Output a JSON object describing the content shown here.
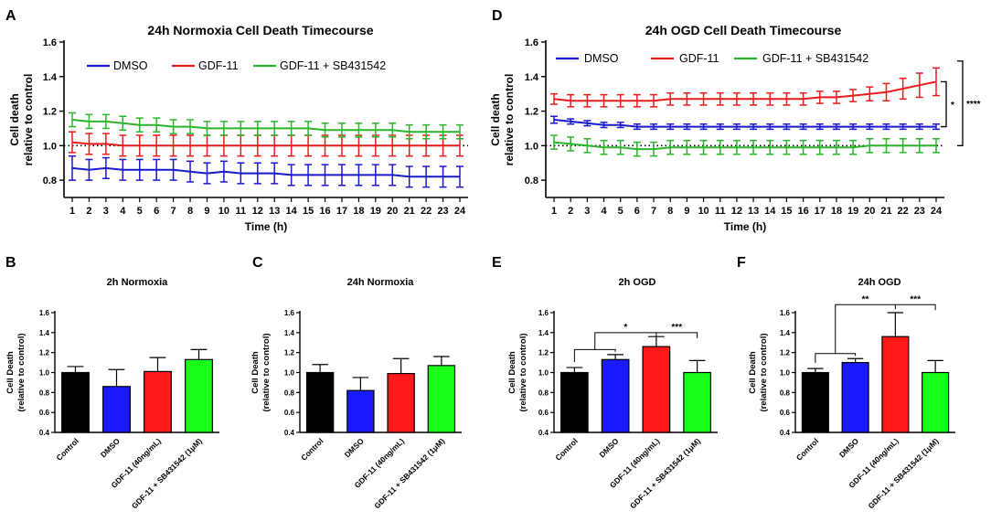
{
  "figure": {
    "chart_data": [
      {
        "panel": "A",
        "type": "line",
        "title": "24h Normoxia Cell Death Timecourse",
        "xlabel": "Time (h)",
        "ylabel": [
          "Cell death",
          "relative to control"
        ],
        "x": [
          1,
          2,
          3,
          4,
          5,
          6,
          7,
          8,
          9,
          10,
          11,
          12,
          13,
          14,
          15,
          16,
          17,
          18,
          19,
          20,
          21,
          22,
          23,
          24
        ],
        "ylim": [
          0.7,
          1.6
        ],
        "yticks": [
          "0.8",
          "1.0",
          "1.2",
          "1.4",
          "1.6"
        ],
        "reference_line": 1.0,
        "series": [
          {
            "name": "DMSO",
            "color": "#1a1acc",
            "values": [
              0.87,
              0.86,
              0.87,
              0.86,
              0.86,
              0.86,
              0.86,
              0.85,
              0.84,
              0.85,
              0.84,
              0.84,
              0.84,
              0.83,
              0.83,
              0.83,
              0.83,
              0.83,
              0.83,
              0.83,
              0.82,
              0.82,
              0.82,
              0.82
            ],
            "errors": [
              0.07,
              0.06,
              0.06,
              0.06,
              0.06,
              0.06,
              0.06,
              0.06,
              0.06,
              0.06,
              0.06,
              0.06,
              0.06,
              0.06,
              0.06,
              0.06,
              0.06,
              0.06,
              0.06,
              0.06,
              0.06,
              0.06,
              0.06,
              0.06
            ]
          },
          {
            "name": "GDF-11",
            "color": "#e81c1c",
            "values": [
              1.02,
              1.01,
              1.01,
              1.0,
              1.0,
              1.0,
              1.0,
              1.0,
              1.0,
              1.0,
              1.0,
              1.0,
              1.0,
              1.0,
              1.0,
              1.0,
              1.0,
              1.0,
              1.0,
              1.0,
              1.0,
              1.0,
              1.0,
              1.0
            ],
            "errors": [
              0.06,
              0.06,
              0.06,
              0.06,
              0.06,
              0.06,
              0.06,
              0.06,
              0.06,
              0.06,
              0.06,
              0.06,
              0.06,
              0.06,
              0.06,
              0.06,
              0.06,
              0.06,
              0.06,
              0.06,
              0.06,
              0.06,
              0.06,
              0.06
            ]
          },
          {
            "name": "GDF-11 + SB431542",
            "color": "#2ab52a",
            "values": [
              1.15,
              1.14,
              1.14,
              1.13,
              1.12,
              1.12,
              1.11,
              1.11,
              1.1,
              1.1,
              1.1,
              1.1,
              1.1,
              1.1,
              1.1,
              1.09,
              1.09,
              1.09,
              1.09,
              1.09,
              1.08,
              1.08,
              1.08,
              1.08
            ],
            "errors": [
              0.04,
              0.04,
              0.04,
              0.04,
              0.04,
              0.04,
              0.04,
              0.04,
              0.04,
              0.04,
              0.04,
              0.04,
              0.04,
              0.04,
              0.04,
              0.04,
              0.04,
              0.04,
              0.04,
              0.04,
              0.04,
              0.04,
              0.04,
              0.04
            ]
          }
        ]
      },
      {
        "panel": "D",
        "type": "line",
        "title": "24h OGD Cell Death Timecourse",
        "xlabel": "Time (h)",
        "ylabel": [
          "Cell death",
          "relative to control"
        ],
        "x": [
          1,
          2,
          3,
          4,
          5,
          6,
          7,
          8,
          9,
          10,
          11,
          12,
          13,
          14,
          15,
          16,
          17,
          18,
          19,
          20,
          21,
          22,
          23,
          24
        ],
        "ylim": [
          0.7,
          1.6
        ],
        "yticks": [
          "0.8",
          "1.0",
          "1.2",
          "1.4",
          "1.6"
        ],
        "reference_line": 1.0,
        "significance": [
          "*",
          "****"
        ],
        "series": [
          {
            "name": "DMSO",
            "color": "#1a1acc",
            "values": [
              1.15,
              1.14,
              1.13,
              1.12,
              1.12,
              1.11,
              1.11,
              1.11,
              1.11,
              1.11,
              1.11,
              1.11,
              1.11,
              1.11,
              1.11,
              1.11,
              1.11,
              1.11,
              1.11,
              1.11,
              1.11,
              1.11,
              1.11,
              1.11
            ],
            "errors": [
              0.02,
              0.015,
              0.015,
              0.015,
              0.015,
              0.015,
              0.015,
              0.015,
              0.015,
              0.015,
              0.015,
              0.015,
              0.015,
              0.015,
              0.015,
              0.015,
              0.015,
              0.015,
              0.015,
              0.015,
              0.015,
              0.015,
              0.015,
              0.015
            ]
          },
          {
            "name": "GDF-11",
            "color": "#e81c1c",
            "values": [
              1.27,
              1.26,
              1.26,
              1.26,
              1.26,
              1.26,
              1.26,
              1.27,
              1.27,
              1.27,
              1.27,
              1.27,
              1.27,
              1.27,
              1.27,
              1.27,
              1.28,
              1.28,
              1.29,
              1.3,
              1.31,
              1.33,
              1.35,
              1.37
            ],
            "errors": [
              0.03,
              0.035,
              0.035,
              0.035,
              0.035,
              0.035,
              0.035,
              0.035,
              0.035,
              0.035,
              0.035,
              0.035,
              0.035,
              0.035,
              0.035,
              0.035,
              0.035,
              0.035,
              0.035,
              0.04,
              0.05,
              0.06,
              0.07,
              0.08
            ]
          },
          {
            "name": "GDF-11 + SB431542",
            "color": "#2ab52a",
            "values": [
              1.02,
              1.01,
              1.0,
              0.99,
              0.99,
              0.98,
              0.98,
              0.99,
              0.99,
              0.99,
              0.99,
              0.99,
              0.99,
              0.99,
              0.99,
              0.99,
              0.99,
              0.99,
              0.99,
              1.0,
              1.0,
              1.0,
              1.0,
              1.0
            ],
            "errors": [
              0.04,
              0.04,
              0.04,
              0.04,
              0.04,
              0.04,
              0.04,
              0.04,
              0.04,
              0.04,
              0.04,
              0.04,
              0.04,
              0.04,
              0.04,
              0.04,
              0.04,
              0.04,
              0.04,
              0.04,
              0.04,
              0.04,
              0.04,
              0.04
            ]
          }
        ]
      },
      {
        "panel": "B",
        "type": "bar",
        "title": "2h Normoxia",
        "ylabel": [
          "Cell Death",
          "(relative to control)"
        ],
        "categories": [
          "Control",
          "DMSO",
          "GDF-11 (40ng/mL)",
          "GDF-11 + SB431542 (1μM)"
        ],
        "values": [
          1.0,
          0.86,
          1.01,
          1.13
        ],
        "errors": [
          0.06,
          0.17,
          0.14,
          0.1
        ],
        "colors": [
          "#000000",
          "#1a1aff",
          "#ff1a1a",
          "#1aff1a"
        ],
        "ylim": [
          0.4,
          1.6
        ],
        "yticks": [
          "0.4",
          "0.6",
          "0.8",
          "1.0",
          "1.2",
          "1.4",
          "1.6"
        ]
      },
      {
        "panel": "C",
        "type": "bar",
        "title": "24h Normoxia",
        "ylabel": [
          "Cell Death",
          "(relative to control)"
        ],
        "categories": [
          "Control",
          "DMSO",
          "GDF-11 (40ng/mL)",
          "GDF-11 + SB431542 (1μM)"
        ],
        "values": [
          1.0,
          0.82,
          0.99,
          1.07
        ],
        "errors": [
          0.08,
          0.13,
          0.15,
          0.09
        ],
        "colors": [
          "#000000",
          "#1a1aff",
          "#ff1a1a",
          "#1aff1a"
        ],
        "ylim": [
          0.4,
          1.6
        ],
        "yticks": [
          "0.4",
          "0.6",
          "0.8",
          "1.0",
          "1.2",
          "1.4",
          "1.6"
        ]
      },
      {
        "panel": "E",
        "type": "bar",
        "title": "2h OGD",
        "ylabel": [
          "Cell Death",
          "(relative to control)"
        ],
        "categories": [
          "Control",
          "DMSO",
          "GDF-11 (40ng/mL)",
          "GDF-11 + SB431542 (1μM)"
        ],
        "values": [
          1.0,
          1.13,
          1.26,
          1.0
        ],
        "errors": [
          0.05,
          0.05,
          0.1,
          0.12
        ],
        "colors": [
          "#000000",
          "#1a1aff",
          "#ff1a1a",
          "#1aff1a"
        ],
        "ylim": [
          0.4,
          1.6
        ],
        "yticks": [
          "0.4",
          "0.6",
          "0.8",
          "1.0",
          "1.2",
          "1.4",
          "1.6"
        ],
        "significance": [
          "*",
          "***"
        ]
      },
      {
        "panel": "F",
        "type": "bar",
        "title": "24h OGD",
        "ylabel": [
          "Cell Death",
          "(relative to control)"
        ],
        "categories": [
          "Control",
          "DMSO",
          "GDF-11 (40ng/mL)",
          "GDF-11 + SB431542 (1μM)"
        ],
        "values": [
          1.0,
          1.1,
          1.36,
          1.0
        ],
        "errors": [
          0.04,
          0.04,
          0.24,
          0.12
        ],
        "colors": [
          "#000000",
          "#1a1aff",
          "#ff1a1a",
          "#1aff1a"
        ],
        "ylim": [
          0.4,
          1.6
        ],
        "yticks": [
          "0.4",
          "0.6",
          "0.8",
          "1.0",
          "1.2",
          "1.4",
          "1.6"
        ],
        "significance": [
          "**",
          "***"
        ]
      }
    ]
  }
}
